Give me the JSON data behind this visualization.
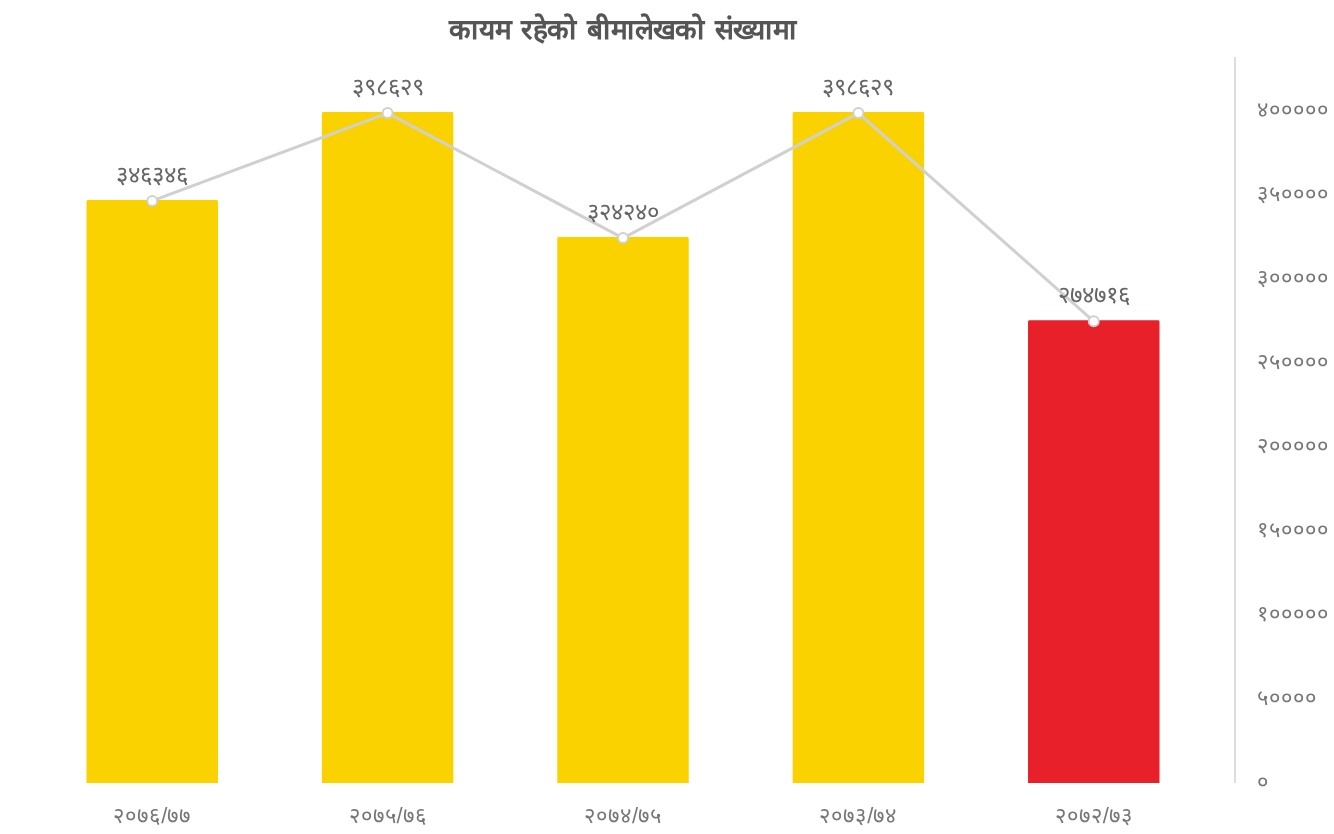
{
  "chart_data": {
    "type": "bar",
    "title": "कायम रहेको बीमालेखको संख्यामा",
    "categories": [
      "२०७६/७७",
      "२०७५/७६",
      "२०७४/७५",
      "२०७३/७४",
      "२०७२/७३"
    ],
    "series": [
      {
        "colors": [
          "#f9d200",
          "#f9d200",
          "#f9d200",
          "#f9d200",
          "#e8202a"
        ],
        "values": [
          346346,
          398629,
          324240,
          398629,
          274716
        ],
        "value_labels": [
          "३४६३४६",
          "३९८६२९",
          "३२४२४०",
          "३९८६२९",
          "२७४७१६"
        ]
      },
      {
        "type": "line",
        "color": "#d0d0d0",
        "marker": "circle",
        "values": [
          346346,
          398629,
          324240,
          398629,
          274716
        ]
      }
    ],
    "ylim": [
      0,
      400000
    ],
    "yticks": [
      {
        "value": 0,
        "label": "०"
      },
      {
        "value": 50000,
        "label": "५००००"
      },
      {
        "value": 100000,
        "label": "१०००००"
      },
      {
        "value": 150000,
        "label": "१५००००"
      },
      {
        "value": 200000,
        "label": "२०००००"
      },
      {
        "value": 250000,
        "label": "२५००००"
      },
      {
        "value": 300000,
        "label": "३०००००"
      },
      {
        "value": 350000,
        "label": "३५००००"
      },
      {
        "value": 400000,
        "label": "४०००००"
      }
    ],
    "grid": false
  }
}
